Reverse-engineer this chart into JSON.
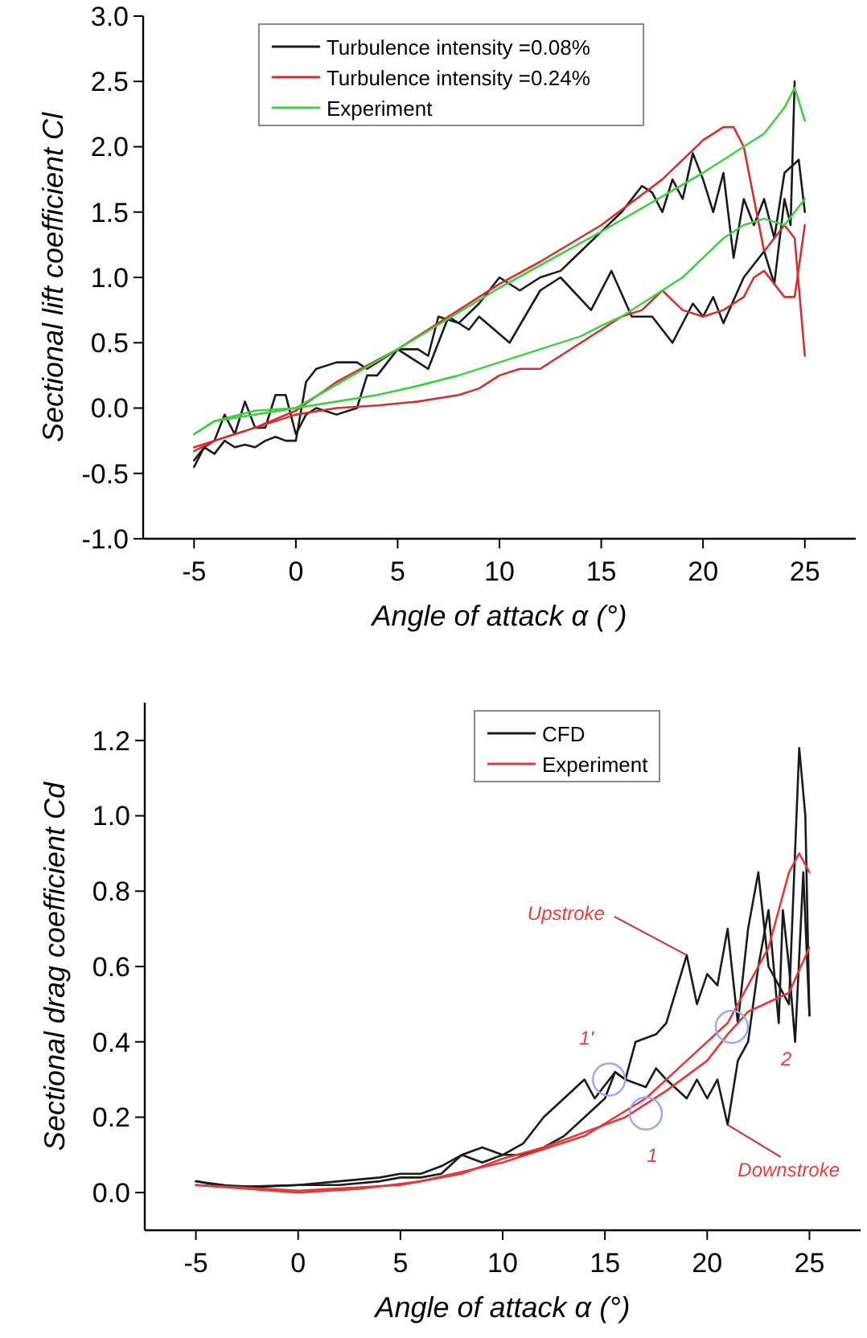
{
  "chart_data": [
    {
      "type": "line",
      "xlabel": "Angle of attack α (°)",
      "ylabel": "Sectional lift coefficient Cl",
      "xlim": [
        -7.5,
        27.5
      ],
      "ylim": [
        -1,
        3
      ],
      "xticks": [
        -5,
        0,
        5,
        10,
        15,
        20,
        25
      ],
      "yticks": [
        {
          "value": -1,
          "label": "-1.0"
        },
        {
          "value": -0.5,
          "label": "-0.5"
        },
        {
          "value": 0,
          "label": "0.0"
        },
        {
          "value": 0.5,
          "label": "0.5"
        },
        {
          "value": 1,
          "label": "1.0"
        },
        {
          "value": 1.5,
          "label": "1.5"
        },
        {
          "value": 2,
          "label": "2.0"
        },
        {
          "value": 2.5,
          "label": "2.5"
        },
        {
          "value": 3,
          "label": "3.0"
        }
      ],
      "legend": "top",
      "series": [
        {
          "name": "Turbulence intensity =0.08%",
          "color": "#1a1a1a",
          "x": [
            -5,
            -4.5,
            -4,
            -3.5,
            -3,
            -2.5,
            -2,
            -1.5,
            -1,
            -0.5,
            0,
            0.5,
            1,
            2,
            3,
            3.5,
            4,
            5,
            6,
            6.5,
            7.5,
            8.5,
            9,
            10.5,
            12,
            13,
            14.5,
            15.5,
            16.5,
            17.5,
            18.5,
            19.5,
            20,
            20.5,
            21,
            22,
            23,
            23.5,
            24,
            24.3,
            24.5
          ],
          "values": [
            -0.45,
            -0.3,
            -0.35,
            -0.25,
            -0.3,
            -0.28,
            -0.3,
            -0.25,
            -0.22,
            -0.25,
            -0.25,
            0.2,
            0.3,
            0.35,
            0.35,
            0.3,
            0.35,
            0.45,
            0.35,
            0.3,
            0.7,
            0.6,
            0.7,
            0.5,
            0.9,
            1.0,
            0.75,
            1.05,
            0.7,
            0.7,
            0.5,
            0.8,
            0.7,
            0.85,
            0.65,
            1.0,
            1.2,
            0.95,
            1.6,
            1.4,
            2.5
          ]
        },
        {
          "color": "#1a1a1a",
          "x": [
            -5,
            -4.5,
            -4,
            -3.5,
            -3,
            -2.5,
            -2,
            -1.5,
            -1,
            -0.5,
            0,
            0.5,
            1,
            2,
            3,
            3.5,
            4,
            5,
            6,
            6.5,
            7,
            8,
            9,
            10,
            11,
            12,
            13,
            14,
            15,
            16,
            17,
            17.5,
            18,
            18.5,
            19,
            19.5,
            20,
            20.5,
            21,
            21.5,
            22,
            22.5,
            23,
            23.5,
            24,
            24.7,
            25
          ],
          "values": [
            -0.4,
            -0.3,
            -0.25,
            -0.05,
            -0.2,
            0.05,
            -0.15,
            -0.15,
            0.1,
            0.1,
            -0.2,
            -0.05,
            0.0,
            -0.05,
            0.0,
            0.25,
            0.25,
            0.45,
            0.45,
            0.4,
            0.7,
            0.65,
            0.8,
            1.0,
            0.9,
            1.0,
            1.05,
            1.2,
            1.35,
            1.5,
            1.7,
            1.65,
            1.5,
            1.75,
            1.6,
            1.95,
            1.75,
            1.5,
            1.8,
            1.15,
            1.6,
            1.4,
            1.6,
            1.3,
            1.8,
            1.9,
            1.5
          ]
        },
        {
          "name": "Turbulence intensity =0.24%",
          "color": "#d03030",
          "x": [
            -5,
            -4,
            -2,
            0,
            2,
            5,
            8,
            10,
            12,
            15,
            18,
            20,
            21,
            21.5,
            22,
            22.5,
            23,
            23.5,
            24,
            24.5,
            25
          ],
          "values": [
            -0.3,
            -0.25,
            -0.15,
            -0.02,
            0.2,
            0.45,
            0.75,
            0.95,
            1.12,
            1.4,
            1.75,
            2.05,
            2.15,
            2.15,
            2.0,
            1.6,
            1.2,
            1.3,
            1.4,
            1.3,
            0.4
          ]
        },
        {
          "color": "#d03030",
          "x": [
            -5,
            -4,
            -2,
            0,
            2,
            4,
            6,
            8,
            9,
            10,
            11,
            12,
            13,
            14,
            15,
            16,
            17,
            18,
            19,
            20,
            21,
            22,
            22.5,
            23,
            23.5,
            24,
            24.5,
            25
          ],
          "values": [
            -0.33,
            -0.25,
            -0.15,
            -0.05,
            0.0,
            0.02,
            0.05,
            0.1,
            0.15,
            0.25,
            0.3,
            0.3,
            0.4,
            0.5,
            0.6,
            0.7,
            0.75,
            0.9,
            0.75,
            0.7,
            0.75,
            0.85,
            1.0,
            1.05,
            0.95,
            0.85,
            0.85,
            1.4
          ]
        },
        {
          "name": "Experiment",
          "color": "#44cc44",
          "x": [
            -5,
            -4,
            -2,
            0,
            5,
            10,
            15,
            20,
            22,
            23,
            24,
            24.5,
            25
          ],
          "values": [
            -0.2,
            -0.1,
            -0.05,
            0.0,
            0.45,
            0.92,
            1.35,
            1.8,
            2.0,
            2.1,
            2.3,
            2.45,
            2.2
          ]
        },
        {
          "color": "#44cc44",
          "x": [
            -5,
            -4,
            -2,
            0,
            2,
            4,
            6,
            8,
            10,
            12,
            14,
            15,
            16,
            17,
            18,
            19,
            20,
            21,
            22,
            23,
            24,
            25
          ],
          "values": [
            -0.2,
            -0.1,
            -0.02,
            0.0,
            0.05,
            0.1,
            0.17,
            0.25,
            0.35,
            0.45,
            0.55,
            0.63,
            0.7,
            0.8,
            0.9,
            1.0,
            1.15,
            1.3,
            1.4,
            1.45,
            1.4,
            1.6
          ]
        }
      ]
    },
    {
      "type": "line",
      "xlabel": "Angle of attack α (°)",
      "ylabel": "Sectional drag coefficient Cd",
      "xlim": [
        -7.5,
        27.5
      ],
      "ylim": [
        -0.1,
        1.3
      ],
      "xticks": [
        -5,
        0,
        5,
        10,
        15,
        20,
        25
      ],
      "yticks": [
        {
          "value": 0,
          "label": "0.0"
        },
        {
          "value": 0.2,
          "label": "0.2"
        },
        {
          "value": 0.4,
          "label": "0.4"
        },
        {
          "value": 0.6,
          "label": "0.6"
        },
        {
          "value": 0.8,
          "label": "0.8"
        },
        {
          "value": 1,
          "label": "1.0"
        },
        {
          "value": 1.2,
          "label": "1.2"
        }
      ],
      "legend": "top",
      "series": [
        {
          "name": "CFD",
          "color": "#1a1a1a",
          "x": [
            -5,
            -3,
            0,
            2,
            4,
            5,
            6,
            7,
            8,
            9,
            10,
            11,
            12,
            13,
            14,
            14.5,
            15.5,
            16,
            16.5,
            17.5,
            18,
            19,
            19.5,
            20,
            20.5,
            21,
            21.5,
            22,
            22.5,
            23,
            23.5,
            24,
            24.5,
            24.8,
            25
          ],
          "values": [
            0.03,
            0.015,
            0.02,
            0.03,
            0.04,
            0.05,
            0.05,
            0.07,
            0.1,
            0.12,
            0.1,
            0.13,
            0.2,
            0.25,
            0.3,
            0.25,
            0.32,
            0.3,
            0.4,
            0.42,
            0.45,
            0.63,
            0.5,
            0.58,
            0.55,
            0.7,
            0.45,
            0.7,
            0.85,
            0.6,
            0.55,
            0.5,
            1.18,
            1.0,
            0.47
          ]
        },
        {
          "color": "#1a1a1a",
          "x": [
            -5,
            -4,
            -2,
            0,
            2,
            4,
            5,
            6,
            7,
            8,
            9,
            10,
            11,
            12,
            13,
            14,
            15,
            15.5,
            16,
            17,
            17.5,
            18,
            19,
            19.5,
            20,
            20.5,
            21,
            21.5,
            22,
            22.5,
            23,
            23.5,
            23.7,
            24,
            24.3,
            24.7,
            25
          ],
          "values": [
            0.03,
            0.02,
            0.015,
            0.02,
            0.02,
            0.03,
            0.04,
            0.04,
            0.05,
            0.1,
            0.08,
            0.1,
            0.1,
            0.12,
            0.15,
            0.2,
            0.25,
            0.32,
            0.3,
            0.28,
            0.33,
            0.3,
            0.25,
            0.3,
            0.25,
            0.3,
            0.18,
            0.35,
            0.4,
            0.6,
            0.75,
            0.45,
            0.75,
            0.6,
            0.4,
            0.85,
            0.47
          ]
        },
        {
          "name": "Experiment",
          "color": "#e03a3a",
          "x": [
            -5,
            0,
            3,
            6,
            10,
            14,
            17,
            19,
            21,
            22,
            23,
            24,
            24.5,
            25
          ],
          "values": [
            0.02,
            0.0,
            0.01,
            0.03,
            0.08,
            0.15,
            0.25,
            0.35,
            0.45,
            0.55,
            0.65,
            0.85,
            0.9,
            0.85
          ]
        },
        {
          "color": "#e03a3a",
          "x": [
            -5,
            0,
            5,
            8,
            10,
            12,
            14,
            16,
            18,
            20,
            21,
            22,
            24,
            25
          ],
          "values": [
            0.02,
            0.005,
            0.02,
            0.05,
            0.09,
            0.12,
            0.16,
            0.2,
            0.27,
            0.35,
            0.42,
            0.48,
            0.53,
            0.65
          ]
        }
      ],
      "annotations": [
        {
          "text": "Upstroke",
          "x": 19,
          "y": 0.63
        },
        {
          "text": "Downstroke",
          "x": 21,
          "y": 0.18
        },
        {
          "text": "1'",
          "x": 15.2,
          "y": 0.3
        },
        {
          "text": "1",
          "x": 17,
          "y": 0.21
        },
        {
          "text": "2",
          "x": 21.2,
          "y": 0.44
        }
      ]
    }
  ]
}
